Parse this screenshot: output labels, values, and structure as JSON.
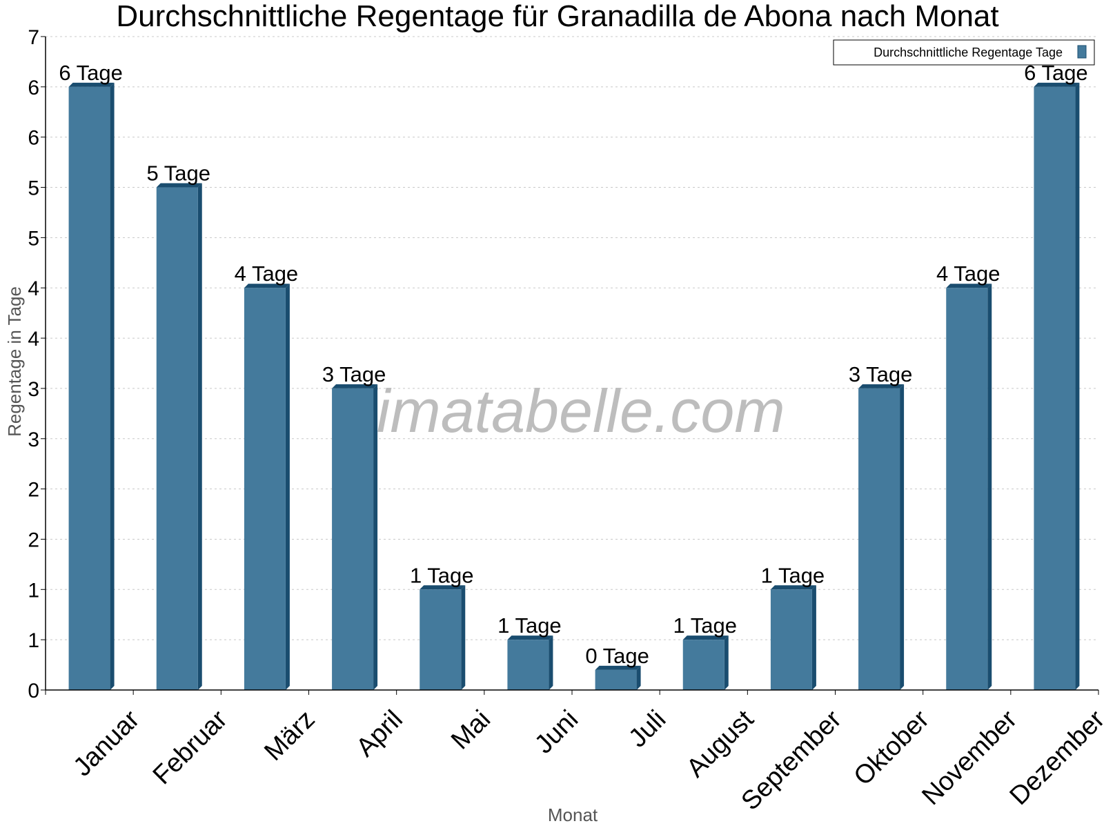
{
  "chart_data": {
    "type": "bar",
    "title": "Durchschnittliche Regentage für Granadilla de Abona nach Monat",
    "xlabel": "Monat",
    "ylabel": "Regentage in Tage",
    "ylim": [
      0,
      6.5
    ],
    "yticks": [
      0,
      0.5,
      1,
      1.5,
      2,
      2.5,
      3,
      3.5,
      4,
      4.5,
      5,
      5.5,
      6,
      6.5
    ],
    "ytick_labels": [
      "0",
      "1",
      "1",
      "2",
      "2",
      "3",
      "3",
      "4",
      "4",
      "5",
      "5",
      "6",
      "6",
      "7"
    ],
    "grid": true,
    "legend_position": "top-right",
    "categories": [
      "Januar",
      "Februar",
      "März",
      "April",
      "Mai",
      "Juni",
      "Juli",
      "August",
      "September",
      "Oktober",
      "November",
      "Dezember"
    ],
    "series": [
      {
        "name": "Durchschnittliche Regentage Tage",
        "values": [
          6,
          5,
          4,
          3,
          1,
          0.5,
          0.2,
          0.5,
          1,
          3,
          4,
          6
        ],
        "labels": [
          "6 Tage",
          "5 Tage",
          "4 Tage",
          "3 Tage",
          "1 Tage",
          "1 Tage",
          "0 Tage",
          "1 Tage",
          "1 Tage",
          "3 Tage",
          "4 Tage",
          "6 Tage"
        ],
        "color": "#447a9c",
        "side_color": "#1a4d6f"
      }
    ],
    "watermark": "klimatabelle.com"
  }
}
